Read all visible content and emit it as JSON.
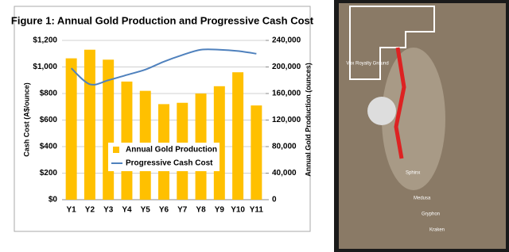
{
  "chart_data": {
    "type": "bar_line",
    "title": "Figure 1: Annual Gold Production and Progressive Cash Cost",
    "y_label": "Cash Cost (A$/ounce)",
    "y2_label": "Annual Gold Production (ounces)",
    "categories": [
      "Y1",
      "Y2",
      "Y3",
      "Y4",
      "Y5",
      "Y6",
      "Y7",
      "Y8",
      "Y9",
      "Y10",
      "Y11"
    ],
    "series": [
      {
        "name": "Annual Gold Production",
        "type": "bar",
        "axis": "y2",
        "color": "#ffc000",
        "values": [
          213000,
          226000,
          211000,
          178000,
          164000,
          144000,
          146000,
          160000,
          171000,
          192000,
          142000
        ]
      },
      {
        "name": "Progressive Cash Cost",
        "type": "line",
        "axis": "y",
        "color": "#4f81bd",
        "values": [
          990,
          870,
          900,
          940,
          980,
          1040,
          1090,
          1130,
          1130,
          1120,
          1100
        ]
      }
    ],
    "ylim": [
      0,
      1200
    ],
    "yticks": [
      {
        "value": 0,
        "label": "$0"
      },
      {
        "value": 200,
        "label": "$200"
      },
      {
        "value": 400,
        "label": "$400"
      },
      {
        "value": 600,
        "label": "$600"
      },
      {
        "value": 800,
        "label": "$800"
      },
      {
        "value": 1000,
        "label": "$1,000"
      },
      {
        "value": 1200,
        "label": "$1,200"
      }
    ],
    "y2lim": [
      0,
      240000
    ],
    "y2ticks": [
      0,
      {
        "value": 40000,
        "label": "40,000"
      },
      {
        "value": 80000,
        "label": "80,000"
      },
      {
        "value": 120000,
        "label": "120,000"
      },
      {
        "value": 160000,
        "label": "160,000"
      },
      {
        "value": 200000,
        "label": "200,000"
      },
      {
        "value": 240000,
        "label": "240,000"
      }
    ],
    "grid": true
  },
  "map": {
    "labels": [
      "Vox Royalty Ground",
      "Sphinx",
      "Medusa",
      "Gryphon",
      "Kraken"
    ]
  }
}
